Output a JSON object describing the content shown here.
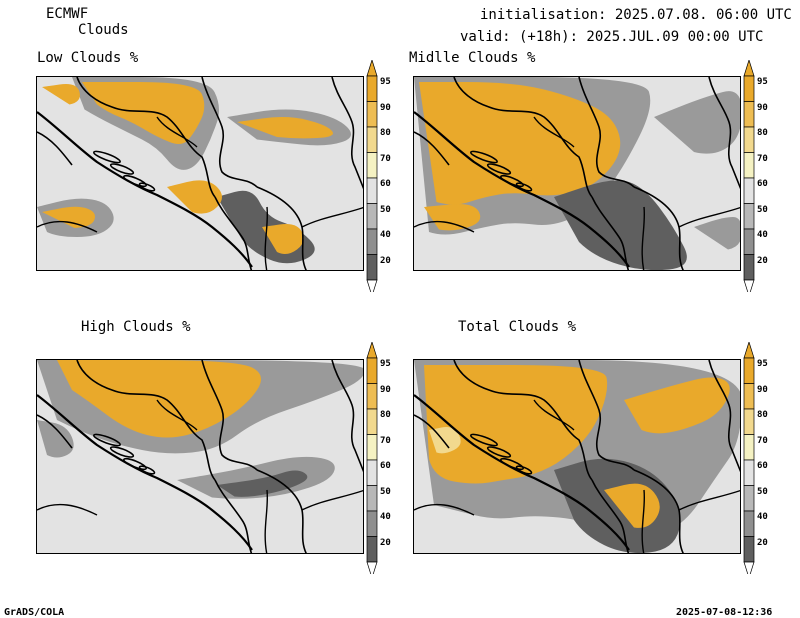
{
  "header": {
    "model": "ECMWF",
    "product": "Clouds",
    "init": "initialisation: 2025.07.08. 06:00 UTC",
    "valid": "valid: (+18h): 2025.JUL.09 00:00 UTC"
  },
  "panels": [
    {
      "title": "Low Clouds %"
    },
    {
      "title": "Midlle Clouds %"
    },
    {
      "title": "High Clouds %"
    },
    {
      "title": "Total Clouds %"
    }
  ],
  "colorbar": {
    "labels": [
      "95",
      "90",
      "80",
      "70",
      "60",
      "50",
      "40",
      "20"
    ],
    "colors": [
      "#e9a92b",
      "#eebd53",
      "#f2d98e",
      "#f5f2c3",
      "#e3e3e3",
      "#b8b8b8",
      "#8f8f8f",
      "#5f5f5f"
    ]
  },
  "footer": {
    "left": "GrADS/COLA",
    "right": "2025-07-08-12:36"
  },
  "colors": {
    "orange": "#e9a92b",
    "light_orange": "#eebd53",
    "pale": "#f2d98e",
    "grey_bg": "#e3e3e3",
    "mid_grey": "#9a9a9a",
    "dark_grey": "#5f5f5f"
  }
}
